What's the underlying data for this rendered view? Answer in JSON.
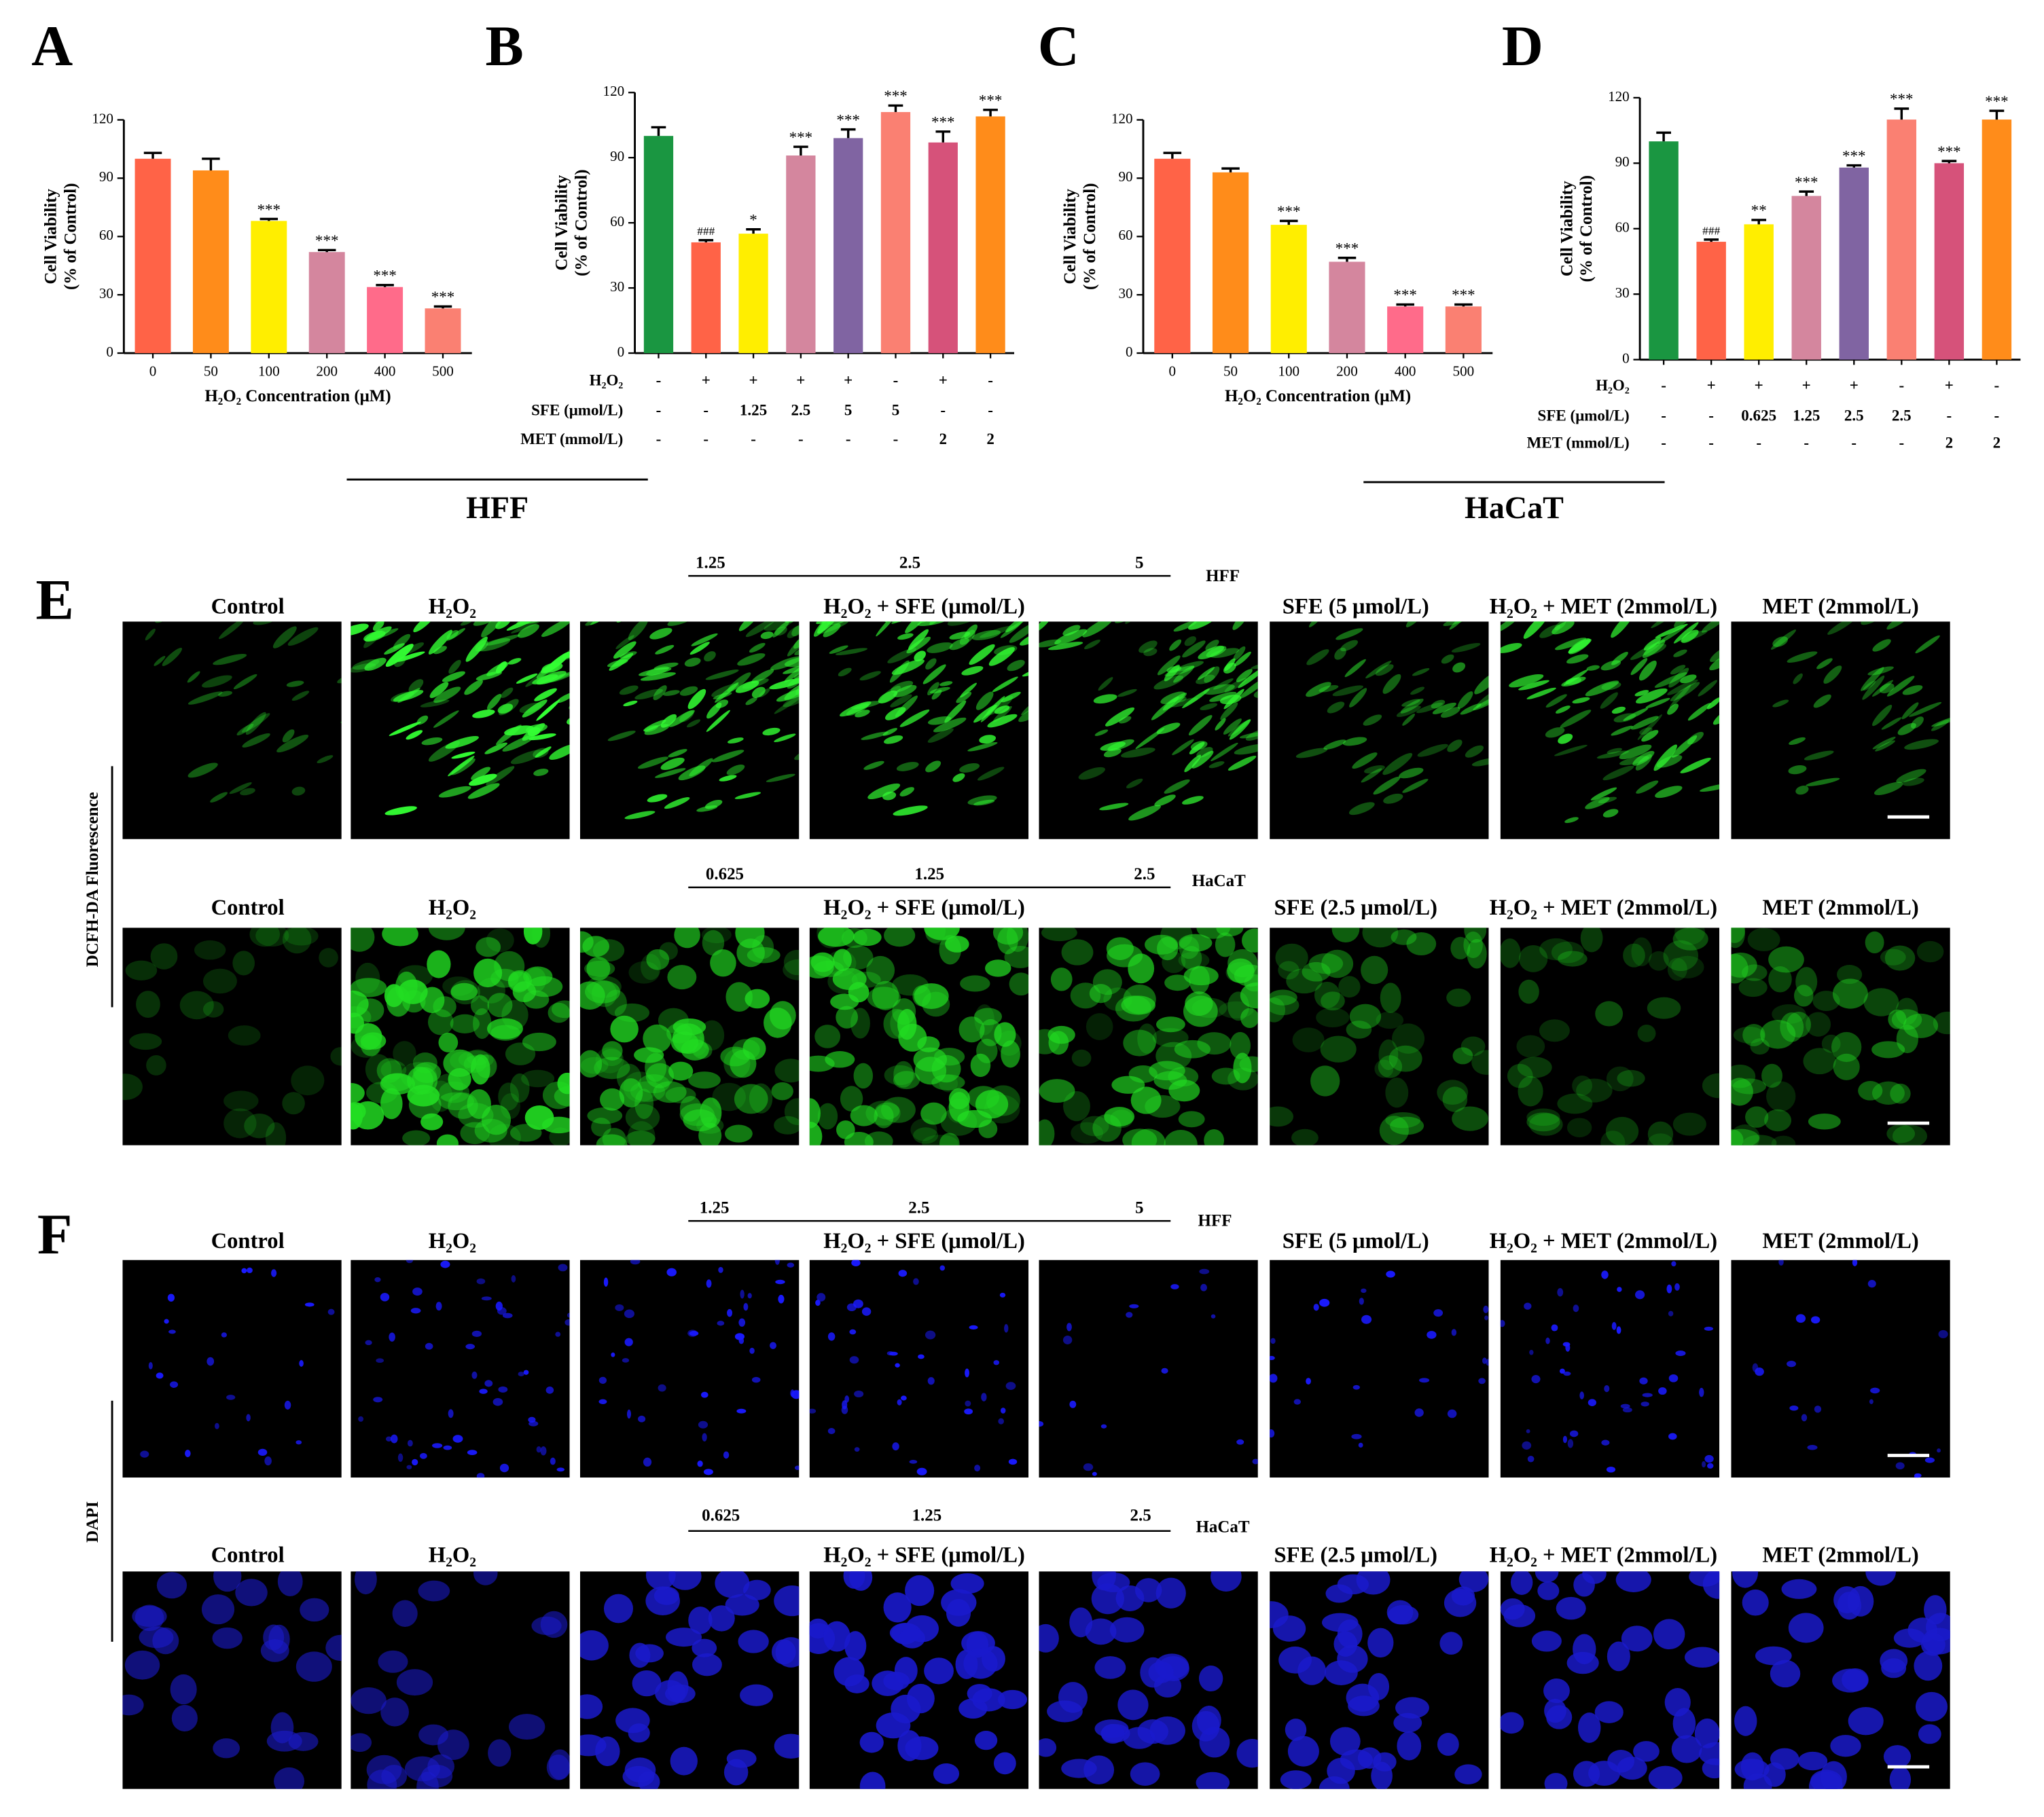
{
  "chart_data": [
    {
      "type": "bar",
      "title": "A",
      "ylabel": [
        "Cell Viability",
        "(% of Control)"
      ],
      "xlabel": "H₂O₂ Concentration (μM)",
      "categories": [
        "0",
        "50",
        "100",
        "200",
        "400",
        "500"
      ],
      "values": [
        100,
        94,
        68,
        52,
        34,
        23
      ],
      "errors": [
        3,
        6,
        1,
        1,
        1,
        1
      ],
      "colors": [
        "#ff6347",
        "#ff8c1a",
        "#ffee00",
        "#d4869e",
        "#ff6b8a",
        "#fa8072"
      ],
      "annotations": [
        null,
        null,
        "***",
        "***",
        "***",
        "***"
      ],
      "ylim": [
        0,
        120
      ],
      "yticks": [
        0,
        30,
        60,
        90,
        120
      ]
    },
    {
      "type": "bar",
      "title": "B",
      "ylabel": [
        "Cell Viability",
        "(% of Control)"
      ],
      "values": [
        100,
        51,
        55,
        91,
        99,
        111,
        97,
        109
      ],
      "errors": [
        4,
        1,
        2,
        4,
        4,
        3,
        5,
        3
      ],
      "colors": [
        "#1a9641",
        "#ff6347",
        "#ffee00",
        "#d4869e",
        "#8064a2",
        "#fa8072",
        "#d6527a",
        "#ff8c1a"
      ],
      "annotations": [
        null,
        "###",
        "*",
        "***",
        "***",
        "***",
        "***",
        "***"
      ],
      "ylim": [
        0,
        120
      ],
      "yticks": [
        0,
        30,
        60,
        90,
        120
      ],
      "treatments": [
        {
          "name": "H₂O₂",
          "values": [
            "-",
            "+",
            "+",
            "+",
            "+",
            "-",
            "+",
            "-"
          ]
        },
        {
          "name": "SFE (μmol/L)",
          "values": [
            "-",
            "-",
            "1.25",
            "2.5",
            "5",
            "5",
            "-",
            "-"
          ]
        },
        {
          "name": "MET (mmol/L)",
          "values": [
            "-",
            "-",
            "-",
            "-",
            "-",
            "-",
            "2",
            "2"
          ]
        }
      ],
      "group_label": "HFF"
    },
    {
      "type": "bar",
      "title": "C",
      "ylabel": [
        "Cell Viability",
        "(% of Control)"
      ],
      "xlabel": "H₂O₂ Concentration (μM)",
      "categories": [
        "0",
        "50",
        "100",
        "200",
        "400",
        "500"
      ],
      "values": [
        100,
        93,
        66,
        47,
        24,
        24
      ],
      "errors": [
        3,
        2,
        2,
        2,
        1,
        1
      ],
      "colors": [
        "#ff6347",
        "#ff8c1a",
        "#ffee00",
        "#d4869e",
        "#ff6b8a",
        "#fa8072"
      ],
      "annotations": [
        null,
        null,
        "***",
        "***",
        "***",
        "***"
      ],
      "ylim": [
        0,
        120
      ],
      "yticks": [
        0,
        30,
        60,
        90,
        120
      ]
    },
    {
      "type": "bar",
      "title": "D",
      "ylabel": [
        "Cell Viability",
        "(% of Control)"
      ],
      "values": [
        100,
        54,
        62,
        75,
        88,
        110,
        90,
        110
      ],
      "errors": [
        4,
        1,
        2,
        2,
        1,
        5,
        1,
        4
      ],
      "colors": [
        "#1a9641",
        "#ff6347",
        "#ffee00",
        "#d4869e",
        "#8064a2",
        "#fa8072",
        "#d6527a",
        "#ff8c1a"
      ],
      "annotations": [
        null,
        "###",
        "**",
        "***",
        "***",
        "***",
        "***",
        "***"
      ],
      "ylim": [
        0,
        120
      ],
      "yticks": [
        0,
        30,
        60,
        90,
        120
      ],
      "treatments": [
        {
          "name": "H₂O₂",
          "values": [
            "-",
            "+",
            "+",
            "+",
            "+",
            "-",
            "+",
            "-"
          ]
        },
        {
          "name": "SFE (μmol/L)",
          "values": [
            "-",
            "-",
            "0.625",
            "1.25",
            "2.5",
            "2.5",
            "-",
            "-"
          ]
        },
        {
          "name": "MET (mmol/L)",
          "values": [
            "-",
            "-",
            "-",
            "-",
            "-",
            "-",
            "2",
            "2"
          ]
        }
      ],
      "group_label": "HaCaT"
    }
  ],
  "image_panels": [
    {
      "letter": "E",
      "side_label": "DCFH-DA  Fluorescence",
      "rows": [
        {
          "cell_line": "HFF",
          "doses": [
            "1.25",
            "2.5",
            "5"
          ],
          "labels": [
            "Control",
            "H₂O₂",
            "H₂O₂ + SFE (μmol/L)",
            "SFE (5 μmol/L)",
            "H₂O₂ + MET (2mmol/L)",
            "MET (2mmol/L)"
          ]
        },
        {
          "cell_line": "HaCaT",
          "doses": [
            "0.625",
            "1.25",
            "2.5"
          ],
          "labels": [
            "Control",
            "H₂O₂",
            "H₂O₂ + SFE (μmol/L)",
            "SFE (2.5 μmol/L)",
            "H₂O₂ + MET (2mmol/L)",
            "MET (2mmol/L)"
          ]
        }
      ]
    },
    {
      "letter": "F",
      "side_label": "DAPI",
      "rows": [
        {
          "cell_line": "HFF",
          "doses": [
            "1.25",
            "2.5",
            "5"
          ],
          "labels": [
            "Control",
            "H₂O₂",
            "H₂O₂ + SFE (μmol/L)",
            "SFE (5 μmol/L)",
            "H₂O₂ + MET (2mmol/L)",
            "MET (2mmol/L)"
          ]
        },
        {
          "cell_line": "HaCaT",
          "doses": [
            "0.625",
            "1.25",
            "2.5"
          ],
          "labels": [
            "Control",
            "H₂O₂",
            "H₂O₂ + SFE (μmol/L)",
            "SFE (2.5 μmol/L)",
            "H₂O₂ + MET (2mmol/L)",
            "MET (2mmol/L)"
          ]
        }
      ]
    }
  ]
}
